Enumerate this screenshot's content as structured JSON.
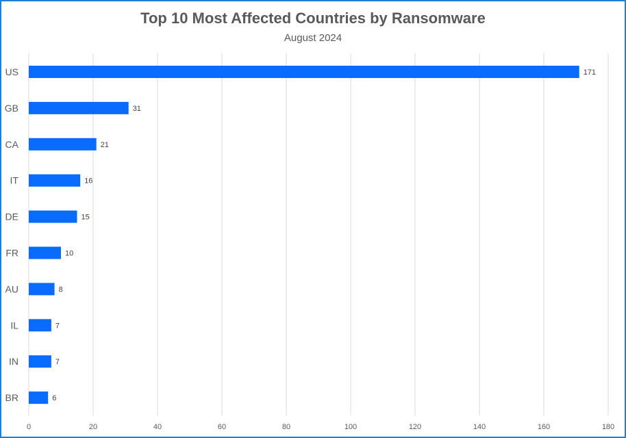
{
  "chart_data": {
    "type": "bar",
    "orientation": "horizontal",
    "title": "Top 10 Most Affected Countries by Ransomware",
    "subtitle": "August 2024",
    "categories": [
      "US",
      "GB",
      "CA",
      "IT",
      "DE",
      "FR",
      "AU",
      "IL",
      "IN",
      "BR"
    ],
    "values": [
      171,
      31,
      21,
      16,
      15,
      10,
      8,
      7,
      7,
      6
    ],
    "xlim": [
      0,
      180
    ],
    "xticks": [
      0,
      20,
      40,
      60,
      80,
      100,
      120,
      140,
      160,
      180
    ],
    "xlabel": "",
    "ylabel": "",
    "grid": "vertical",
    "data_labels": true,
    "bar_color": "#0a6cff",
    "gridline_color": "#d9d9d9",
    "border_color": "#1f7fd6"
  }
}
